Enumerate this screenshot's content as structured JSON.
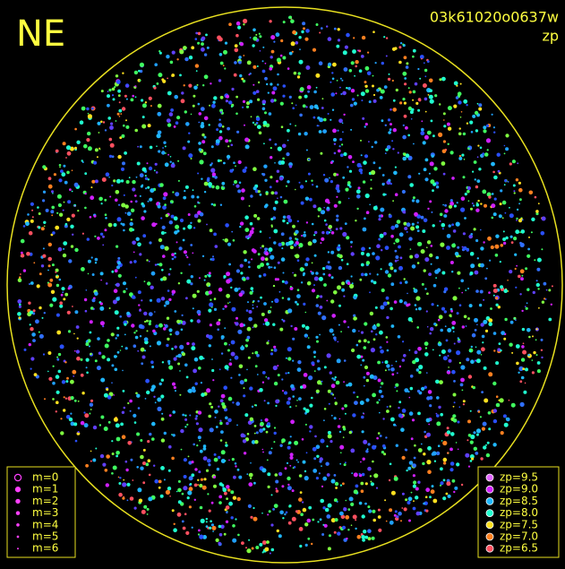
{
  "header": {
    "direction": "NE",
    "image_id": "03k61020o0637w",
    "mode": "zp"
  },
  "magnitude_legend": {
    "items": [
      {
        "label": "m=0"
      },
      {
        "label": "m=1"
      },
      {
        "label": "m=2"
      },
      {
        "label": "m=3"
      },
      {
        "label": "m=4"
      },
      {
        "label": "m=5"
      },
      {
        "label": "m=6"
      }
    ]
  },
  "zp_legend": {
    "items": [
      {
        "label": "zp=9.5",
        "color": "#e066ff"
      },
      {
        "label": "zp=9.0",
        "color": "#d020ff"
      },
      {
        "label": "zp=8.5",
        "color": "#20b8ff"
      },
      {
        "label": "zp=8.0",
        "color": "#20ffd0"
      },
      {
        "label": "zp=7.5",
        "color": "#ffe020"
      },
      {
        "label": "zp=7.0",
        "color": "#ff8020"
      },
      {
        "label": "zp=6.5",
        "color": "#ff5060"
      }
    ]
  }
}
